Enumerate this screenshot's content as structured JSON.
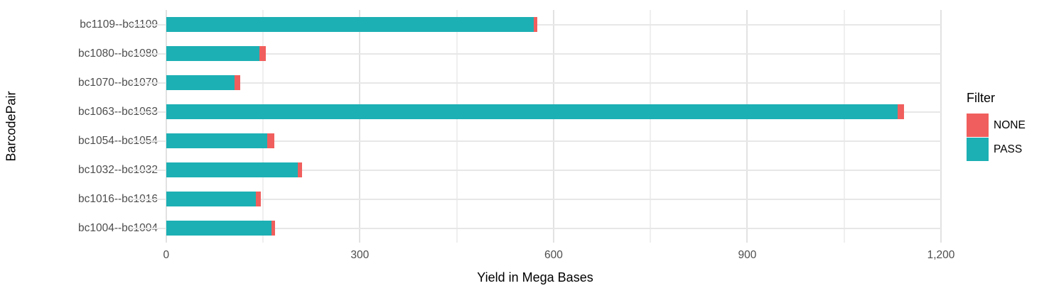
{
  "chart_data": {
    "type": "bar",
    "orientation": "horizontal",
    "stacked": true,
    "title": "",
    "xlabel": "Yield in Mega Bases",
    "ylabel": "BarcodePair",
    "categories": [
      "bc1109--bc1109",
      "bc1080--bc1080",
      "bc1070--bc1070",
      "bc1063--bc1063",
      "bc1054--bc1054",
      "bc1032--bc1032",
      "bc1016--bc1016",
      "bc1004--bc1004"
    ],
    "series": [
      {
        "name": "PASS",
        "color": "#1cb0b4",
        "values": [
          569,
          144,
          106,
          1133,
          156,
          204,
          139,
          163
        ]
      },
      {
        "name": "NONE",
        "color": "#f05f5d",
        "values": [
          6,
          10,
          9,
          10,
          12,
          7,
          8,
          6
        ]
      }
    ],
    "stack_order": [
      "PASS",
      "NONE"
    ],
    "xlim": [
      -57,
      1200
    ],
    "x_major_ticks": [
      0,
      300,
      600,
      900,
      1200
    ],
    "x_tick_labels": [
      "0",
      "300",
      "600",
      "900",
      "1,200"
    ],
    "x_minor_ticks": [
      150,
      450,
      750,
      1050
    ],
    "grid": true,
    "legend": {
      "title": "Filter",
      "position": "right",
      "entries": [
        {
          "label": "NONE",
          "color": "#f05f5d"
        },
        {
          "label": "PASS",
          "color": "#1cb0b4"
        }
      ]
    }
  }
}
